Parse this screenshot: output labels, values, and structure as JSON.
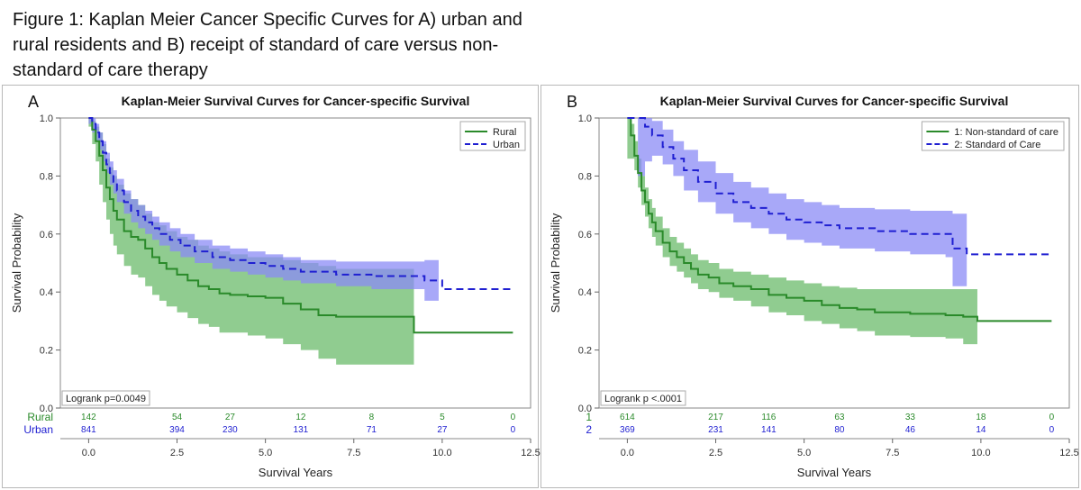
{
  "figure_title": "Figure 1: Kaplan Meier Cancer Specific Curves for A) urban and rural residents and B) receipt of standard of care versus non-standard of care therapy",
  "colors": {
    "green": "#2a8a2a",
    "green_band": "#8ac98a",
    "blue": "#1f1fd1",
    "blue_band": "#8b8bf6",
    "overlap": "#5a73c4"
  },
  "chart_data": [
    {
      "type": "line",
      "panel_letter": "A",
      "title": "Kaplan-Meier Survival Curves for Cancer-specific Survival",
      "xlabel": "Survival Years",
      "ylabel": "Survival Probability",
      "xlim": [
        -0.8,
        12.5
      ],
      "ylim": [
        0.0,
        1.0
      ],
      "xticks": [
        "0.0",
        "2.5",
        "5.0",
        "7.5",
        "10.0",
        "12.5"
      ],
      "yticks": [
        "0.0",
        "0.2",
        "0.4",
        "0.6",
        "0.8",
        "1.0"
      ],
      "legend_position": "top-right",
      "annotation": "Logrank p=0.0049",
      "series": [
        {
          "name": "Rural",
          "color": "#2a8a2a",
          "dash": false,
          "band_color": "#8ac98a",
          "x": [
            0,
            0.1,
            0.2,
            0.3,
            0.4,
            0.5,
            0.6,
            0.7,
            0.8,
            1.0,
            1.2,
            1.4,
            1.6,
            1.8,
            2.0,
            2.2,
            2.5,
            2.8,
            3.1,
            3.4,
            3.7,
            4.0,
            4.5,
            5.0,
            5.5,
            6.0,
            6.5,
            7.0,
            8.0,
            9.0,
            9.2,
            12.0
          ],
          "y": [
            1.0,
            0.96,
            0.92,
            0.87,
            0.82,
            0.76,
            0.72,
            0.68,
            0.65,
            0.61,
            0.59,
            0.58,
            0.55,
            0.52,
            0.5,
            0.48,
            0.46,
            0.44,
            0.42,
            0.41,
            0.395,
            0.39,
            0.385,
            0.38,
            0.36,
            0.34,
            0.32,
            0.315,
            0.315,
            0.315,
            0.26,
            0.26
          ],
          "upper": [
            1.0,
            0.99,
            0.97,
            0.95,
            0.91,
            0.86,
            0.83,
            0.8,
            0.77,
            0.74,
            0.72,
            0.7,
            0.67,
            0.64,
            0.63,
            0.61,
            0.59,
            0.58,
            0.56,
            0.55,
            0.54,
            0.53,
            0.52,
            0.52,
            0.51,
            0.5,
            0.49,
            0.48,
            0.48,
            0.48,
            0.48,
            0.48
          ],
          "lower": [
            0.97,
            0.91,
            0.85,
            0.77,
            0.71,
            0.65,
            0.6,
            0.56,
            0.53,
            0.49,
            0.46,
            0.45,
            0.42,
            0.39,
            0.37,
            0.35,
            0.33,
            0.31,
            0.29,
            0.28,
            0.26,
            0.26,
            0.25,
            0.24,
            0.22,
            0.2,
            0.17,
            0.15,
            0.15,
            0.15,
            0.15,
            0.15
          ],
          "band_end": 9.2,
          "at_risk": [
            "142",
            "54",
            "27",
            "12",
            "8",
            "5",
            "0"
          ]
        },
        {
          "name": "Urban",
          "color": "#1f1fd1",
          "dash": true,
          "band_color": "#8b8bf6",
          "x": [
            0,
            0.1,
            0.2,
            0.3,
            0.4,
            0.5,
            0.6,
            0.7,
            0.8,
            1.0,
            1.2,
            1.4,
            1.6,
            1.8,
            2.0,
            2.3,
            2.6,
            3.0,
            3.5,
            4.0,
            4.5,
            5.0,
            5.5,
            6.0,
            7.0,
            8.0,
            9.0,
            9.5,
            10.0,
            12.0
          ],
          "y": [
            1.0,
            0.98,
            0.95,
            0.92,
            0.88,
            0.84,
            0.81,
            0.78,
            0.75,
            0.71,
            0.68,
            0.66,
            0.64,
            0.62,
            0.6,
            0.58,
            0.56,
            0.54,
            0.52,
            0.51,
            0.5,
            0.49,
            0.48,
            0.47,
            0.46,
            0.455,
            0.455,
            0.44,
            0.41,
            0.41
          ],
          "upper": [
            1.0,
            1.0,
            0.98,
            0.95,
            0.92,
            0.88,
            0.85,
            0.82,
            0.79,
            0.75,
            0.72,
            0.7,
            0.68,
            0.66,
            0.64,
            0.62,
            0.6,
            0.58,
            0.56,
            0.55,
            0.54,
            0.53,
            0.52,
            0.51,
            0.505,
            0.505,
            0.505,
            0.51,
            0.51,
            0.51
          ],
          "lower": [
            0.98,
            0.95,
            0.92,
            0.89,
            0.85,
            0.81,
            0.77,
            0.74,
            0.71,
            0.67,
            0.64,
            0.62,
            0.6,
            0.58,
            0.56,
            0.54,
            0.52,
            0.5,
            0.48,
            0.47,
            0.46,
            0.45,
            0.44,
            0.43,
            0.42,
            0.41,
            0.41,
            0.37,
            0.33,
            0.33
          ],
          "band_end": 9.9,
          "at_risk": [
            "841",
            "394",
            "230",
            "131",
            "71",
            "27",
            "0"
          ]
        }
      ],
      "at_risk_x": [
        0,
        2.5,
        4.0,
        6.0,
        8.0,
        10.0,
        12.0
      ]
    },
    {
      "type": "line",
      "panel_letter": "B",
      "title": "Kaplan-Meier Survival Curves for Cancer-specific Survival",
      "xlabel": "Survival Years",
      "ylabel": "Survival Probability",
      "xlim": [
        -0.8,
        12.5
      ],
      "ylim": [
        0.0,
        1.0
      ],
      "xticks": [
        "0.0",
        "2.5",
        "5.0",
        "7.5",
        "10.0",
        "12.5"
      ],
      "yticks": [
        "0.0",
        "0.2",
        "0.4",
        "0.6",
        "0.8",
        "1.0"
      ],
      "legend_position": "top-right",
      "annotation": "Logrank p <.0001",
      "series": [
        {
          "name": "1: Non-standard of care",
          "color": "#2a8a2a",
          "dash": false,
          "band_color": "#8ac98a",
          "x": [
            0,
            0.1,
            0.2,
            0.3,
            0.4,
            0.5,
            0.6,
            0.7,
            0.8,
            1.0,
            1.2,
            1.4,
            1.6,
            1.8,
            2.0,
            2.3,
            2.6,
            3.0,
            3.5,
            4.0,
            4.5,
            5.0,
            5.5,
            6.0,
            6.5,
            7.0,
            8.0,
            9.0,
            9.5,
            9.9,
            12.0
          ],
          "y": [
            1.0,
            0.94,
            0.87,
            0.81,
            0.75,
            0.71,
            0.67,
            0.64,
            0.61,
            0.57,
            0.54,
            0.52,
            0.5,
            0.48,
            0.46,
            0.45,
            0.43,
            0.42,
            0.41,
            0.39,
            0.38,
            0.37,
            0.355,
            0.345,
            0.34,
            0.33,
            0.325,
            0.32,
            0.315,
            0.3,
            0.3
          ],
          "upper": [
            1.0,
            0.98,
            0.92,
            0.86,
            0.8,
            0.76,
            0.72,
            0.69,
            0.66,
            0.62,
            0.59,
            0.57,
            0.55,
            0.53,
            0.51,
            0.5,
            0.48,
            0.47,
            0.46,
            0.45,
            0.44,
            0.43,
            0.42,
            0.415,
            0.41,
            0.41,
            0.41,
            0.41,
            0.41,
            0.41,
            0.41
          ],
          "lower": [
            0.86,
            0.86,
            0.82,
            0.76,
            0.7,
            0.66,
            0.62,
            0.59,
            0.56,
            0.52,
            0.49,
            0.47,
            0.45,
            0.43,
            0.41,
            0.4,
            0.38,
            0.37,
            0.35,
            0.33,
            0.32,
            0.3,
            0.29,
            0.275,
            0.265,
            0.25,
            0.245,
            0.24,
            0.22,
            0.22,
            0.22
          ],
          "band_end": 9.9,
          "at_risk": [
            "614",
            "217",
            "116",
            "63",
            "33",
            "18",
            "0"
          ]
        },
        {
          "name": "2: Standard of Care",
          "color": "#1f1fd1",
          "dash": true,
          "band_color": "#8b8bf6",
          "x": [
            0,
            0.3,
            0.5,
            0.7,
            1.0,
            1.3,
            1.6,
            2.0,
            2.5,
            3.0,
            3.5,
            4.0,
            4.5,
            5.0,
            5.5,
            6.0,
            7.0,
            8.0,
            9.0,
            9.2,
            9.6,
            12.0
          ],
          "y": [
            1.0,
            1.0,
            0.97,
            0.94,
            0.9,
            0.86,
            0.82,
            0.78,
            0.74,
            0.71,
            0.69,
            0.67,
            0.65,
            0.64,
            0.63,
            0.62,
            0.61,
            0.6,
            0.6,
            0.55,
            0.53,
            0.53
          ],
          "upper": [
            1.0,
            1.0,
            1.0,
            0.99,
            0.96,
            0.92,
            0.89,
            0.85,
            0.81,
            0.78,
            0.76,
            0.74,
            0.72,
            0.71,
            0.7,
            0.69,
            0.685,
            0.68,
            0.68,
            0.67,
            0.67,
            0.67
          ],
          "lower": [
            1.0,
            0.8,
            0.85,
            0.87,
            0.84,
            0.8,
            0.75,
            0.71,
            0.67,
            0.64,
            0.62,
            0.6,
            0.58,
            0.57,
            0.56,
            0.55,
            0.54,
            0.53,
            0.52,
            0.42,
            0.42,
            0.42
          ],
          "band_end": 9.6,
          "at_risk": [
            "369",
            "231",
            "141",
            "80",
            "46",
            "14",
            "0"
          ]
        }
      ],
      "at_risk_labels": [
        "1",
        "2"
      ],
      "at_risk_x": [
        0,
        2.5,
        4.0,
        6.0,
        8.0,
        10.0,
        12.0
      ]
    }
  ]
}
